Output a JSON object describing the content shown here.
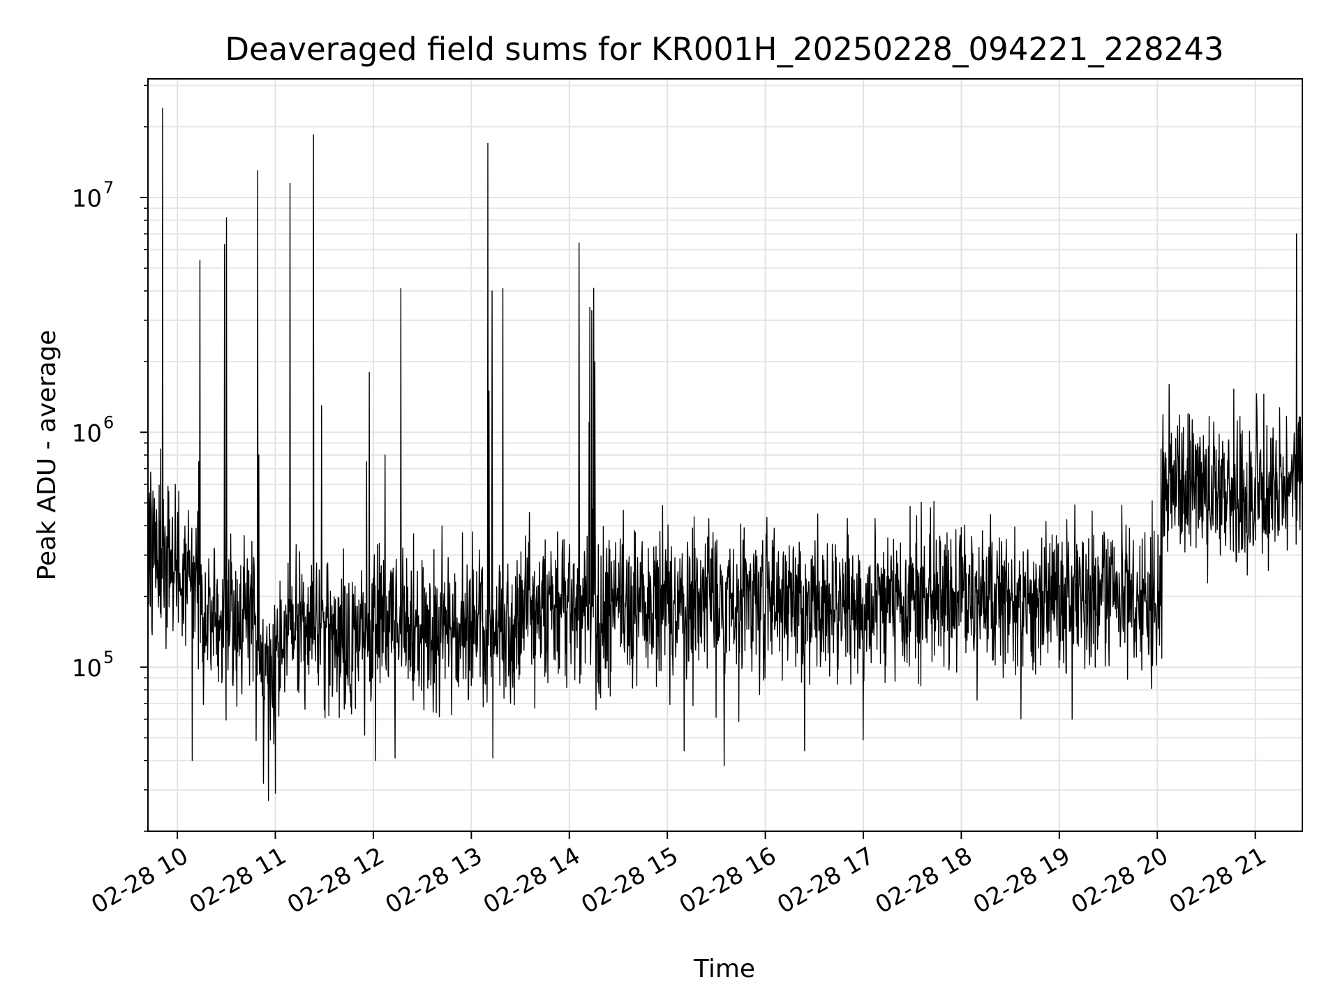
{
  "chart_data": {
    "type": "line",
    "title": "Deaveraged field sums for KR001H_20250228_094221_228243",
    "xlabel": "Time",
    "ylabel": "Peak ADU - average",
    "yscale": "log",
    "ylim": [
      20000,
      32000000
    ],
    "xlim_hours": [
      9.7,
      21.48
    ],
    "grid": true,
    "x_tick_labels": [
      "02-28 10",
      "02-28 11",
      "02-28 12",
      "02-28 13",
      "02-28 14",
      "02-28 15",
      "02-28 16",
      "02-28 17",
      "02-28 18",
      "02-28 19",
      "02-28 20",
      "02-28 21"
    ],
    "x_tick_hours": [
      10,
      11,
      12,
      13,
      14,
      15,
      16,
      17,
      18,
      19,
      20,
      21
    ],
    "y_ticks": [
      {
        "base": "10",
        "exp": "5",
        "value": 100000
      },
      {
        "base": "10",
        "exp": "6",
        "value": 1000000
      },
      {
        "base": "10",
        "exp": "7",
        "value": 10000000
      }
    ],
    "line_color": "#000000",
    "series": [
      {
        "name": "deaveraged field sums",
        "baseline_segments": [
          {
            "start_hour": 9.7,
            "end_hour": 9.85,
            "median": 300000
          },
          {
            "start_hour": 9.85,
            "end_hour": 10.25,
            "median": 240000
          },
          {
            "start_hour": 10.25,
            "end_hour": 10.8,
            "median": 160000
          },
          {
            "start_hour": 10.8,
            "end_hour": 11.1,
            "median": 110000
          },
          {
            "start_hour": 11.1,
            "end_hour": 12.0,
            "median": 140000
          },
          {
            "start_hour": 12.0,
            "end_hour": 13.5,
            "median": 150000
          },
          {
            "start_hour": 13.5,
            "end_hour": 14.5,
            "median": 180000
          },
          {
            "start_hour": 14.5,
            "end_hour": 20.0,
            "median": 190000
          },
          {
            "start_hour": 20.0,
            "end_hour": 20.05,
            "median": 180000
          },
          {
            "start_hour": 20.05,
            "end_hour": 21.48,
            "median": 580000
          }
        ],
        "spikes": [
          {
            "hour": 9.85,
            "value": 24000000
          },
          {
            "hour": 9.83,
            "value": 850000
          },
          {
            "hour": 10.23,
            "value": 5400000
          },
          {
            "hour": 10.22,
            "value": 750000
          },
          {
            "hour": 10.48,
            "value": 6300000
          },
          {
            "hour": 10.5,
            "value": 8200000
          },
          {
            "hour": 10.82,
            "value": 13000000
          },
          {
            "hour": 10.83,
            "value": 800000
          },
          {
            "hour": 11.15,
            "value": 11500000
          },
          {
            "hour": 11.39,
            "value": 18500000
          },
          {
            "hour": 11.47,
            "value": 1300000
          },
          {
            "hour": 11.96,
            "value": 1800000
          },
          {
            "hour": 11.93,
            "value": 750000
          },
          {
            "hour": 12.28,
            "value": 4100000
          },
          {
            "hour": 12.12,
            "value": 800000
          },
          {
            "hour": 13.17,
            "value": 17000000
          },
          {
            "hour": 13.18,
            "value": 1500000
          },
          {
            "hour": 13.21,
            "value": 4000000
          },
          {
            "hour": 13.32,
            "value": 4100000
          },
          {
            "hour": 14.1,
            "value": 6400000
          },
          {
            "hour": 14.2,
            "value": 1100000
          },
          {
            "hour": 14.21,
            "value": 3400000
          },
          {
            "hour": 14.23,
            "value": 3300000
          },
          {
            "hour": 14.25,
            "value": 4100000
          },
          {
            "hour": 14.26,
            "value": 2000000
          },
          {
            "hour": 20.04,
            "value": 850000
          },
          {
            "hour": 20.12,
            "value": 1600000
          },
          {
            "hour": 21.42,
            "value": 7000000
          },
          {
            "hour": 21.44,
            "value": 1100000
          }
        ],
        "dips": [
          {
            "hour": 10.93,
            "value": 27000
          },
          {
            "hour": 11.0,
            "value": 29000
          },
          {
            "hour": 10.88,
            "value": 32000
          },
          {
            "hour": 12.02,
            "value": 40000
          },
          {
            "hour": 12.22,
            "value": 41000
          },
          {
            "hour": 13.22,
            "value": 41000
          },
          {
            "hour": 15.58,
            "value": 38000
          },
          {
            "hour": 15.17,
            "value": 44000
          },
          {
            "hour": 16.4,
            "value": 44000
          },
          {
            "hour": 17.0,
            "value": 49000
          },
          {
            "hour": 19.13,
            "value": 60000
          },
          {
            "hour": 10.15,
            "value": 40000
          }
        ]
      }
    ]
  }
}
